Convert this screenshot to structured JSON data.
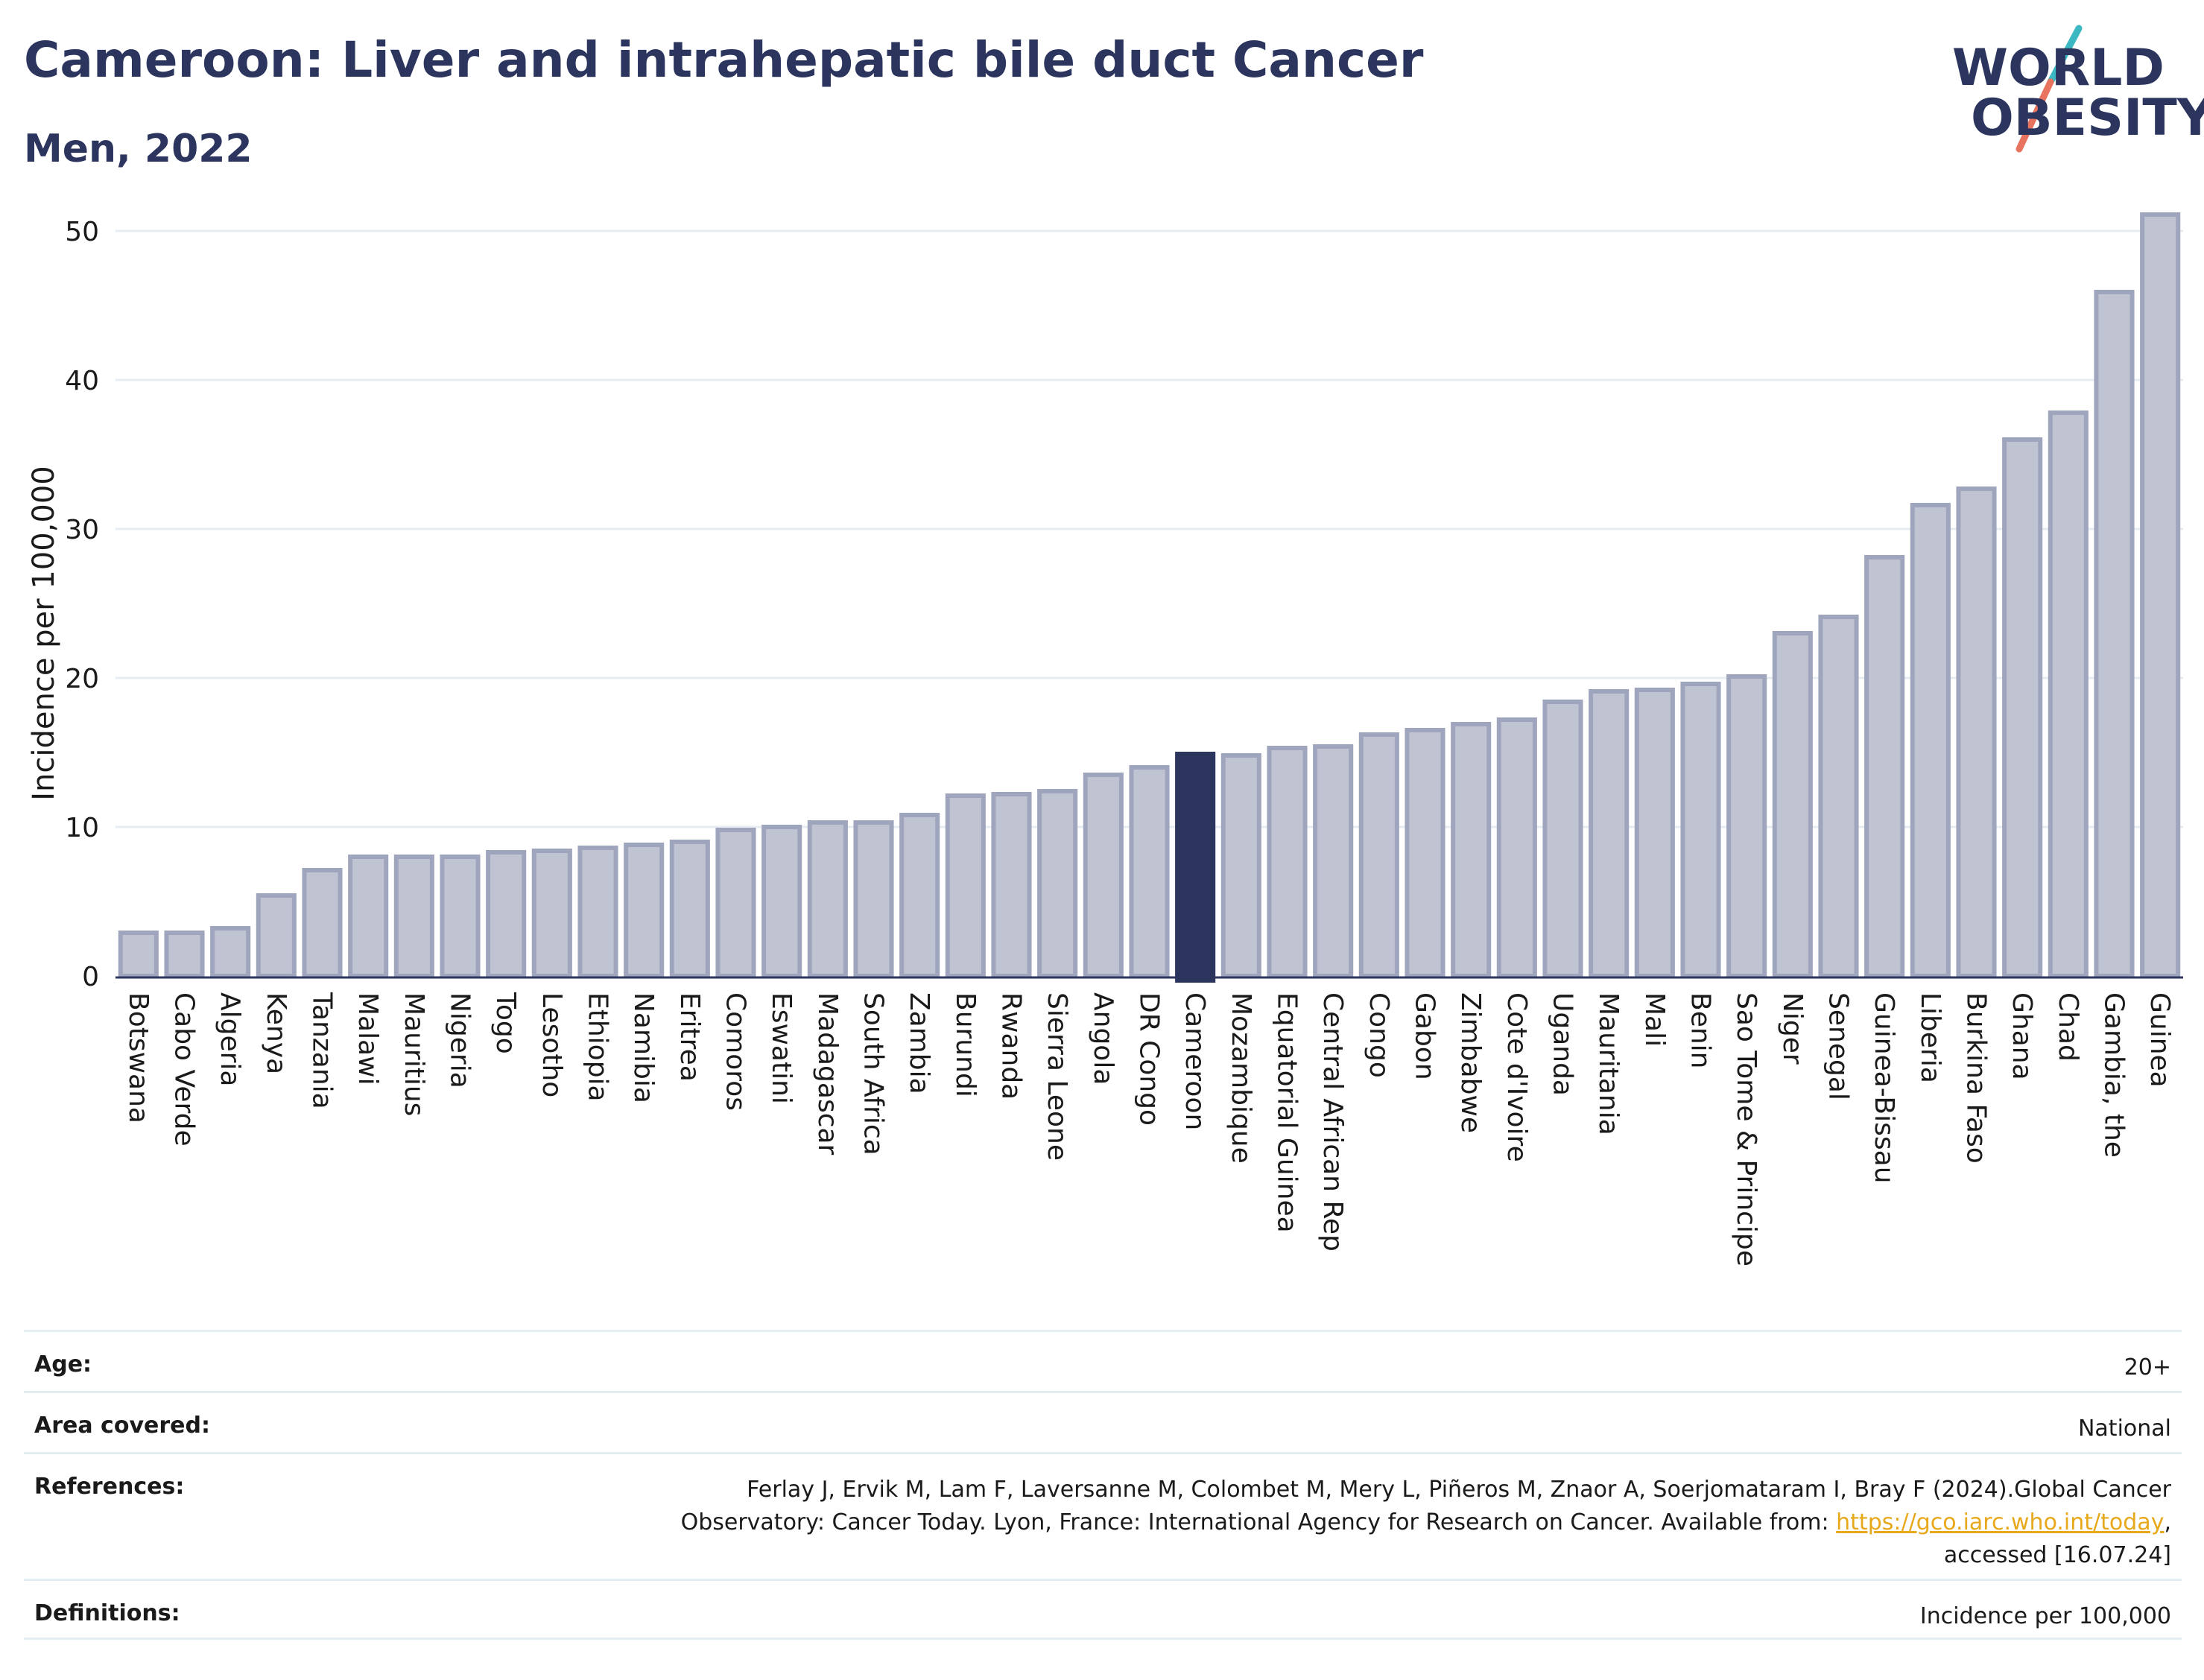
{
  "header": {
    "title": "Cameroon: Liver and intrahepatic bile duct Cancer",
    "subtitle": "Men, 2022"
  },
  "logo": {
    "line1": "WORLD",
    "line2": "OBESITY",
    "colors": {
      "text": "#2c355e",
      "slash_top": "#3bb8c1",
      "slash_bottom": "#e8735f"
    }
  },
  "chart_data": {
    "type": "bar",
    "title": "",
    "xlabel": "",
    "ylabel": "Incidence per 100,000",
    "ylim": [
      0,
      53
    ],
    "yticks": [
      0,
      10,
      20,
      30,
      40,
      50
    ],
    "grid": true,
    "highlight": "Cameroon",
    "colors": {
      "bar": "#c0c4d2",
      "bar_edge": "#9fa5bd",
      "highlight": "#2c355e",
      "grid": "#e6ecf2"
    },
    "categories": [
      "Botswana",
      "Cabo Verde",
      "Algeria",
      "Kenya",
      "Tanzania",
      "Malawi",
      "Mauritius",
      "Nigeria",
      "Togo",
      "Lesotho",
      "Ethiopia",
      "Namibia",
      "Eritrea",
      "Comoros",
      "Eswatini",
      "Madagascar",
      "South Africa",
      "Zambia",
      "Burundi",
      "Rwanda",
      "Sierra Leone",
      "Angola",
      "DR Congo",
      "Cameroon",
      "Mozambique",
      "Equatorial Guinea",
      "Central African Rep",
      "Congo",
      "Gabon",
      "Zimbabwe",
      "Cote d'Ivoire",
      "Uganda",
      "Mauritania",
      "Mali",
      "Benin",
      "Sao Tome & Principe",
      "Niger",
      "Senegal",
      "Guinea-Bissau",
      "Liberia",
      "Burkina Faso",
      "Ghana",
      "Chad",
      "Gambia, the",
      "Guinea"
    ],
    "values": [
      2.9,
      2.9,
      3.2,
      5.4,
      7.1,
      8.0,
      8.0,
      8.0,
      8.3,
      8.4,
      8.6,
      8.8,
      9.0,
      9.8,
      10.0,
      10.3,
      10.3,
      10.8,
      12.1,
      12.2,
      12.4,
      13.5,
      14.0,
      14.9,
      14.8,
      15.3,
      15.4,
      16.2,
      16.5,
      16.9,
      17.2,
      18.4,
      19.1,
      19.2,
      19.6,
      20.1,
      23.0,
      24.1,
      28.1,
      31.6,
      32.7,
      36.0,
      37.8,
      45.9,
      51.1
    ]
  },
  "meta": [
    {
      "key": "Age:",
      "value": "20+"
    },
    {
      "key": "Area covered:",
      "value": "National"
    },
    {
      "key": "References:",
      "value_line1": "Ferlay J, Ervik M, Lam F, Laversanne M, Colombet M, Mery L, Piñeros M, Znaor A, Soerjomataram I, Bray F (2024).Global Cancer",
      "value_line2": "Observatory: Cancer Today. Lyon, France: International Agency for Research on Cancer. Available from: ",
      "link": "https://gco.iarc.who.int/today",
      "value_line2_end": ",",
      "value_line3": "accessed [16.07.24]"
    },
    {
      "key": "Definitions:",
      "value": "Incidence per 100,000"
    }
  ]
}
